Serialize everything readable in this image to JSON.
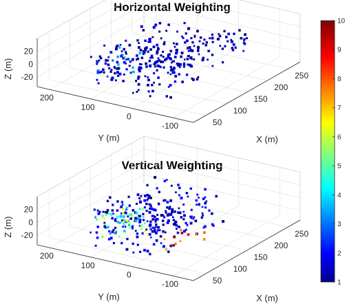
{
  "chart_data": [
    {
      "type": "scatter3d",
      "title": "Horizontal Weighting",
      "xlabel": "X (m)",
      "ylabel": "Y (m)",
      "zlabel": "Z (m)",
      "xticks": [
        "50",
        "100",
        "150",
        "200",
        "250"
      ],
      "yticks": [
        "200",
        "100",
        "0",
        "-100"
      ],
      "zticks": [
        "20",
        "0",
        "-20"
      ],
      "xlim": [
        20,
        280
      ],
      "ylim": [
        -150,
        230
      ],
      "zlim": [
        -35,
        40
      ],
      "grid": true,
      "clusters": [
        {
          "name": "",
          "x": [
            40,
            200
          ],
          "y": [
            -50,
            130
          ],
          "z": [
            -30,
            30
          ],
          "value_range": [
            1,
            2
          ],
          "n": 260
        },
        {
          "name": "",
          "x": [
            60,
            120
          ],
          "y": [
            60,
            130
          ],
          "z": [
            -20,
            10
          ],
          "value_range": [
            2,
            4
          ],
          "n": 22
        },
        {
          "name": "",
          "x": [
            190,
            250
          ],
          "y": [
            -80,
            0
          ],
          "z": [
            -10,
            20
          ],
          "value_range": [
            1,
            2
          ],
          "n": 25
        }
      ],
      "points_note": ""
    },
    {
      "type": "scatter3d",
      "title": "Vertical Weighting",
      "xlabel": "X (m)",
      "ylabel": "Y (m)",
      "zlabel": "Z (m)",
      "xticks": [
        "50",
        "100",
        "150",
        "200",
        "250"
      ],
      "yticks": [
        "200",
        "100",
        "0",
        "-100"
      ],
      "zticks": [
        "20",
        "0",
        "-20"
      ],
      "xlim": [
        20,
        280
      ],
      "ylim": [
        -150,
        230
      ],
      "zlim": [
        -35,
        40
      ],
      "grid": true,
      "clusters": [
        {
          "name": "",
          "x": [
            40,
            200
          ],
          "y": [
            -50,
            130
          ],
          "z": [
            -30,
            30
          ],
          "value_range": [
            1,
            2.5
          ],
          "n": 240
        },
        {
          "name": "",
          "x": [
            50,
            110
          ],
          "y": [
            40,
            130
          ],
          "z": [
            -25,
            15
          ],
          "value_range": [
            3,
            6.5
          ],
          "n": 45
        },
        {
          "name": "",
          "x": [
            70,
            160
          ],
          "y": [
            -60,
            20
          ],
          "z": [
            -35,
            -20
          ],
          "value_range": [
            7,
            10
          ],
          "n": 12
        }
      ],
      "points_note": ""
    }
  ],
  "colorbar": {
    "ticks": [
      "1",
      "2",
      "3",
      "4",
      "5",
      "6",
      "7",
      "8",
      "9",
      "10"
    ],
    "min": 1,
    "max": 10,
    "colormap": "jet"
  }
}
